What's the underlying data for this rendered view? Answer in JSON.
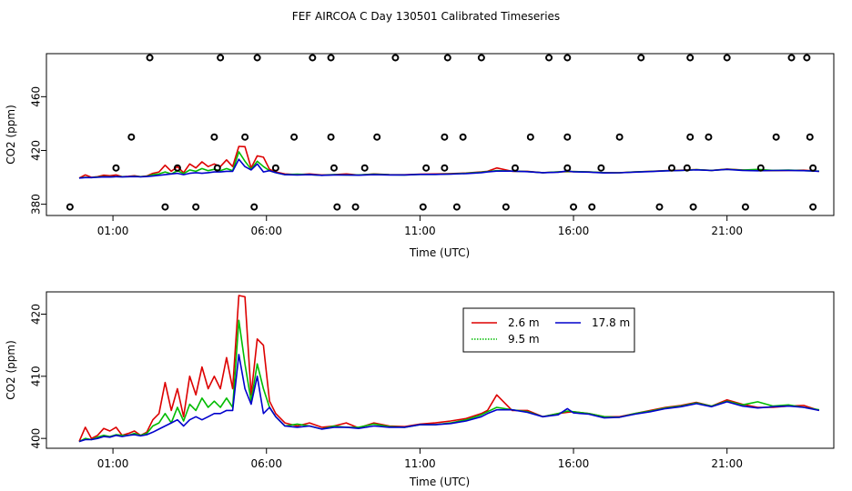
{
  "title": "FEF AIRCOA C  Day 130501  Calibrated Timeseries",
  "colors": {
    "s26": "#dd0000",
    "s95": "#00bb00",
    "s178": "#0000cc"
  },
  "chart_data": [
    {
      "type": "scatter+line",
      "ylabel": "CO2 (ppm)",
      "xlabel": "Time (UTC)",
      "xlim": [
        -0.9,
        24.3
      ],
      "ylim": [
        375,
        490
      ],
      "yticks": [
        380,
        420,
        460
      ],
      "ytick_labels": [
        "380",
        "420",
        "460"
      ],
      "xticks": [
        1,
        6,
        11,
        16,
        21
      ],
      "xtick_labels": [
        "01:00",
        "06:00",
        "11:00",
        "16:00",
        "21:00"
      ],
      "cal_points": [
        {
          "x": 1.1,
          "y": 407
        },
        {
          "x": 1.6,
          "y": 430
        },
        {
          "x": 2.2,
          "y": 489
        },
        {
          "x": 3.1,
          "y": 407
        },
        {
          "x": 4.3,
          "y": 430
        },
        {
          "x": 4.4,
          "y": 407
        },
        {
          "x": 4.5,
          "y": 489
        },
        {
          "x": 5.7,
          "y": 489
        },
        {
          "x": 5.3,
          "y": 430
        },
        {
          "x": 6.3,
          "y": 407
        },
        {
          "x": 6.9,
          "y": 430
        },
        {
          "x": 7.5,
          "y": 489
        },
        {
          "x": 8.1,
          "y": 489
        },
        {
          "x": 8.1,
          "y": 430
        },
        {
          "x": 8.2,
          "y": 407
        },
        {
          "x": 9.2,
          "y": 407
        },
        {
          "x": 9.6,
          "y": 430
        },
        {
          "x": 10.2,
          "y": 489
        },
        {
          "x": 11.2,
          "y": 407
        },
        {
          "x": 11.9,
          "y": 489
        },
        {
          "x": 11.8,
          "y": 430
        },
        {
          "x": 11.8,
          "y": 407
        },
        {
          "x": 12.4,
          "y": 430
        },
        {
          "x": 13.0,
          "y": 489
        },
        {
          "x": 14.1,
          "y": 407
        },
        {
          "x": 14.6,
          "y": 430
        },
        {
          "x": 15.2,
          "y": 489
        },
        {
          "x": 15.8,
          "y": 489
        },
        {
          "x": 15.8,
          "y": 430
        },
        {
          "x": 15.8,
          "y": 407
        },
        {
          "x": 16.9,
          "y": 407
        },
        {
          "x": 17.5,
          "y": 430
        },
        {
          "x": 18.2,
          "y": 489
        },
        {
          "x": 19.2,
          "y": 407
        },
        {
          "x": 19.7,
          "y": 407
        },
        {
          "x": 19.8,
          "y": 430
        },
        {
          "x": 19.8,
          "y": 489
        },
        {
          "x": 20.4,
          "y": 430
        },
        {
          "x": 21.0,
          "y": 489
        },
        {
          "x": 22.1,
          "y": 407
        },
        {
          "x": 22.6,
          "y": 430
        },
        {
          "x": 23.1,
          "y": 489
        },
        {
          "x": 23.6,
          "y": 489
        },
        {
          "x": 23.7,
          "y": 430
        },
        {
          "x": 23.8,
          "y": 407
        },
        {
          "x": -0.4,
          "y": 378
        },
        {
          "x": 2.7,
          "y": 378
        },
        {
          "x": 3.7,
          "y": 378
        },
        {
          "x": 5.6,
          "y": 378
        },
        {
          "x": 8.3,
          "y": 378
        },
        {
          "x": 8.9,
          "y": 378
        },
        {
          "x": 11.1,
          "y": 378
        },
        {
          "x": 12.2,
          "y": 378
        },
        {
          "x": 13.8,
          "y": 378
        },
        {
          "x": 16.0,
          "y": 378
        },
        {
          "x": 16.6,
          "y": 378
        },
        {
          "x": 18.8,
          "y": 378
        },
        {
          "x": 19.9,
          "y": 378
        },
        {
          "x": 21.6,
          "y": 378
        },
        {
          "x": 23.8,
          "y": 378
        }
      ]
    },
    {
      "type": "line",
      "ylabel": "CO2 (ppm)",
      "xlabel": "Time (UTC)",
      "xlim": [
        -0.9,
        24.3
      ],
      "ylim": [
        399,
        423
      ],
      "yticks": [
        400,
        410,
        420
      ],
      "ytick_labels": [
        "400",
        "410",
        "420"
      ],
      "xticks": [
        1,
        6,
        11,
        16,
        21
      ],
      "xtick_labels": [
        "01:00",
        "06:00",
        "11:00",
        "16:00",
        "21:00"
      ],
      "legend": [
        {
          "name": "2.6 m",
          "color_key": "s26",
          "style": "solid"
        },
        {
          "name": "9.5 m",
          "color_key": "s95",
          "style": "dotted"
        },
        {
          "name": "17.8 m",
          "color_key": "s178",
          "style": "solid"
        }
      ],
      "x": [
        -0.1,
        0.1,
        0.3,
        0.5,
        0.7,
        0.9,
        1.1,
        1.3,
        1.5,
        1.7,
        1.9,
        2.1,
        2.3,
        2.5,
        2.7,
        2.9,
        3.1,
        3.3,
        3.5,
        3.7,
        3.9,
        4.1,
        4.3,
        4.5,
        4.7,
        4.9,
        5.1,
        5.3,
        5.5,
        5.7,
        5.9,
        6.1,
        6.3,
        6.6,
        7.0,
        7.4,
        7.8,
        8.2,
        8.6,
        9.0,
        9.5,
        10.0,
        10.5,
        11.0,
        11.5,
        12.0,
        12.5,
        13.0,
        13.2,
        13.5,
        14.0,
        14.5,
        15.0,
        15.5,
        15.8,
        16.0,
        16.5,
        17.0,
        17.5,
        18.0,
        18.5,
        19.0,
        19.5,
        20.0,
        20.5,
        21.0,
        21.5,
        22.0,
        22.5,
        23.0,
        23.5,
        24.0
      ],
      "series": [
        {
          "name": "2.6 m",
          "values": [
            399.5,
            401.8,
            400.0,
            400.5,
            401.6,
            401.2,
            401.8,
            400.5,
            400.8,
            401.2,
            400.5,
            401.0,
            403.0,
            404.0,
            409.0,
            404.5,
            408.0,
            403.5,
            410.0,
            407.0,
            411.5,
            408.0,
            410.0,
            408.0,
            413.0,
            408.0,
            423.0,
            422.8,
            407.0,
            416.0,
            415.0,
            406.0,
            404.0,
            402.5,
            402.0,
            402.5,
            401.8,
            402.0,
            402.5,
            401.7,
            402.5,
            402.0,
            401.9,
            402.3,
            402.5,
            402.8,
            403.2,
            404.0,
            404.5,
            407.0,
            404.5,
            404.5,
            403.5,
            404.0,
            404.2,
            404.3,
            404.0,
            403.5,
            403.5,
            404.0,
            404.5,
            405.0,
            405.3,
            405.8,
            405.2,
            406.2,
            405.5,
            405.0,
            405.0,
            405.2,
            405.3,
            404.5
          ]
        },
        {
          "name": "9.5 m",
          "values": [
            399.5,
            400.0,
            399.8,
            400.2,
            400.5,
            400.3,
            400.6,
            400.5,
            400.5,
            400.8,
            400.5,
            400.8,
            402.0,
            402.5,
            404.0,
            402.5,
            405.0,
            402.8,
            405.5,
            404.5,
            406.5,
            405.0,
            406.0,
            405.0,
            406.5,
            405.0,
            419.0,
            412.0,
            406.0,
            412.0,
            408.0,
            405.0,
            403.5,
            402.0,
            402.3,
            402.0,
            401.5,
            402.0,
            401.8,
            401.8,
            402.3,
            401.9,
            401.8,
            402.2,
            402.2,
            402.5,
            403.0,
            403.8,
            404.3,
            405.0,
            404.6,
            404.3,
            403.5,
            404.0,
            404.4,
            404.3,
            404.0,
            403.5,
            403.4,
            404.0,
            404.4,
            404.9,
            405.2,
            405.7,
            405.2,
            406.0,
            405.4,
            405.9,
            405.2,
            405.4,
            405.0,
            404.6
          ]
        },
        {
          "name": "17.8 m",
          "values": [
            399.5,
            399.8,
            399.8,
            400.0,
            400.3,
            400.2,
            400.5,
            400.3,
            400.5,
            400.6,
            400.4,
            400.6,
            401.0,
            401.5,
            402.0,
            402.5,
            403.0,
            402.0,
            403.0,
            403.5,
            403.0,
            403.5,
            404.0,
            404.0,
            404.5,
            404.5,
            413.5,
            408.0,
            405.5,
            410.0,
            404.0,
            405.0,
            403.5,
            402.0,
            401.8,
            402.0,
            401.5,
            401.8,
            401.8,
            401.6,
            402.0,
            401.8,
            401.8,
            402.2,
            402.2,
            402.4,
            402.8,
            403.5,
            404.0,
            404.6,
            404.6,
            404.2,
            403.5,
            403.8,
            404.8,
            404.1,
            403.9,
            403.3,
            403.4,
            403.9,
            404.3,
            404.8,
            405.1,
            405.6,
            405.1,
            405.9,
            405.2,
            404.9,
            405.1,
            405.2,
            405.0,
            404.5
          ]
        }
      ]
    }
  ]
}
